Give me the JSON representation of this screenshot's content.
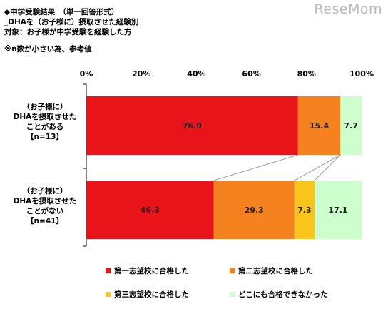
{
  "header": {
    "title": "◆中学受験結果　（単一回答形式）",
    "subtitle": "_DHAを（お子様に）摂取させた経験別",
    "target": "対象：お子様が中学受験を経験した方",
    "note": "※n数が小さい為、参考値"
  },
  "logo": "ReseMom",
  "chart_data": {
    "type": "bar",
    "orientation": "horizontal-stacked-100",
    "x_ticks": [
      "0%",
      "20%",
      "40%",
      "60%",
      "80%",
      "100%"
    ],
    "xlim": [
      0,
      100
    ],
    "categories": [
      [
        "（お子様に）",
        "DHAを摂取させた",
        "ことがある",
        "【n=13】"
      ],
      [
        "（お子様に）",
        "DHAを摂取させた",
        "ことがない",
        "【n=41】"
      ]
    ],
    "series": [
      {
        "name": "第一志望校に合格した",
        "color": "#e8141a",
        "values": [
          76.9,
          46.3
        ]
      },
      {
        "name": "第二志望校に合格した",
        "color": "#f5821f",
        "values": [
          15.4,
          29.3
        ]
      },
      {
        "name": "第三志望校に合格した",
        "color": "#f9c51c",
        "values": [
          0,
          7.3
        ]
      },
      {
        "name": "どこにも合格できなかった",
        "color": "#ccffcc",
        "values": [
          7.7,
          17.1
        ]
      }
    ],
    "data_labels": [
      [
        "76.9",
        "15.4",
        "",
        "7.7"
      ],
      [
        "46.3",
        "29.3",
        "7.3",
        "17.1"
      ]
    ],
    "legend_position": "bottom"
  }
}
